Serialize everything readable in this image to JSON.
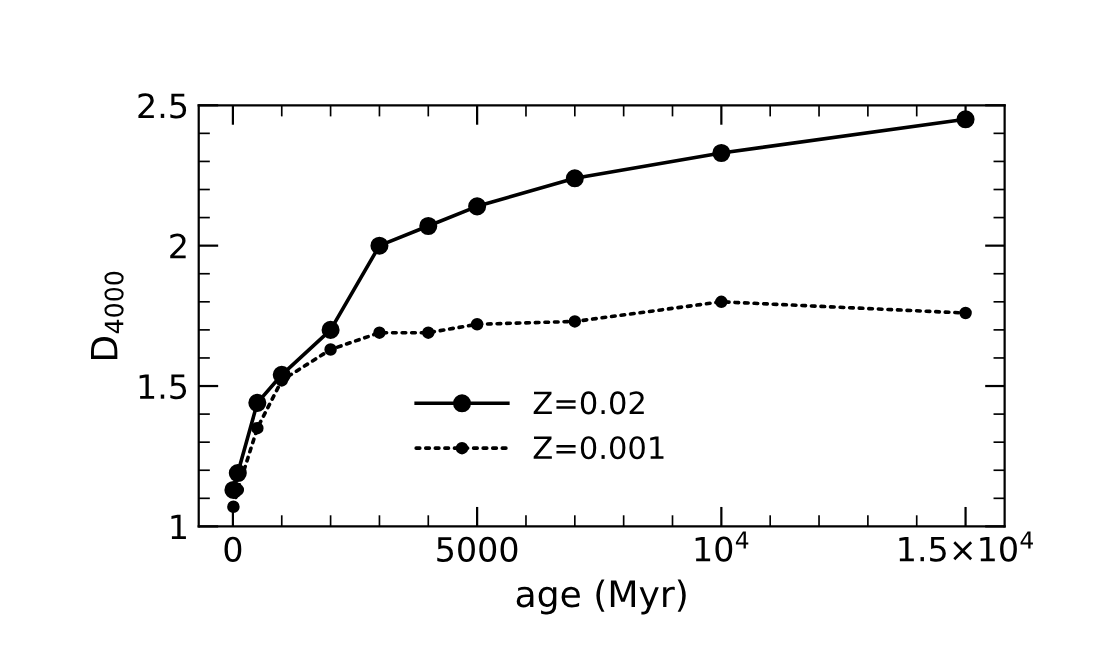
{
  "chart_data": {
    "type": "line",
    "xlabel": "age (Myr)",
    "ylabel": "D$_{4000}$",
    "xlim": [
      -700,
      15800
    ],
    "ylim": [
      1,
      2.5
    ],
    "xticks": [
      0,
      5000,
      {
        "value": 10000,
        "label": "10$^{4}$"
      },
      {
        "value": 15000,
        "label": "1.5×10$^{4}$"
      }
    ],
    "yticks": [
      1,
      1.5,
      2,
      2.5
    ],
    "grid": false,
    "legend": "bottom",
    "marker": "circle",
    "series": [
      {
        "name": "Z=0.02",
        "color": "#000000",
        "line_style": "solid",
        "x": [
          10,
          100,
          500,
          1000,
          2000,
          3000,
          4000,
          5000,
          7000,
          10000,
          15000
        ],
        "values": [
          1.13,
          1.19,
          1.44,
          1.54,
          1.7,
          2.0,
          2.07,
          2.14,
          2.24,
          2.33,
          2.45
        ]
      },
      {
        "name": "Z=0.001",
        "color": "#000000",
        "line_style": "dotted",
        "x": [
          10,
          100,
          500,
          1000,
          2000,
          3000,
          4000,
          5000,
          7000,
          10000,
          15000
        ],
        "values": [
          1.07,
          1.13,
          1.35,
          1.52,
          1.63,
          1.69,
          1.69,
          1.72,
          1.73,
          1.8,
          1.76
        ]
      }
    ]
  }
}
